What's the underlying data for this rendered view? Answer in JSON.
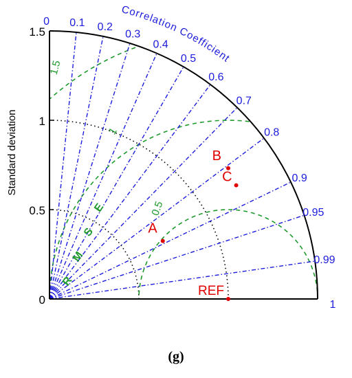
{
  "chart_data": {
    "type": "taylor-diagram",
    "ylabel": "Standard deviation",
    "radial_ticks": [
      "0",
      "0.5",
      "1",
      "1.5"
    ],
    "radial_tick_values": [
      0,
      0.5,
      1,
      1.5
    ],
    "max_std": 1.5,
    "correlation_label": "Correlation Coefficient",
    "correlation_ticks": [
      "0",
      "0.1",
      "0.2",
      "0.3",
      "0.4",
      "0.5",
      "0.6",
      "0.7",
      "0.8",
      "0.9",
      "0.95",
      "0.99",
      "1"
    ],
    "correlation_values": [
      0,
      0.1,
      0.2,
      0.3,
      0.4,
      0.5,
      0.6,
      0.7,
      0.8,
      0.9,
      0.95,
      0.99,
      1
    ],
    "std_dev_arcs": [
      0.5,
      1.0
    ],
    "reference": {
      "label": "REF",
      "std": 1.0,
      "correlation": 1.0
    },
    "rmse_label": "R M S E",
    "rmse_contours": [
      {
        "label": "0.5",
        "value": 0.5
      },
      {
        "label": "1",
        "value": 1.0
      },
      {
        "label": "1.5",
        "value": 1.5
      }
    ],
    "points": [
      {
        "label": "A",
        "std": 0.712,
        "correlation": 0.89
      },
      {
        "label": "B",
        "std": 1.239,
        "correlation": 0.807
      },
      {
        "label": "C",
        "std": 1.223,
        "correlation": 0.854
      }
    ],
    "colors": {
      "axis": "#000000",
      "correlation": "#1c1cdc",
      "rmse": "#1e9a2c",
      "points": "#e00000",
      "std_arcs": "#000000"
    }
  },
  "figure_label": "(g)"
}
